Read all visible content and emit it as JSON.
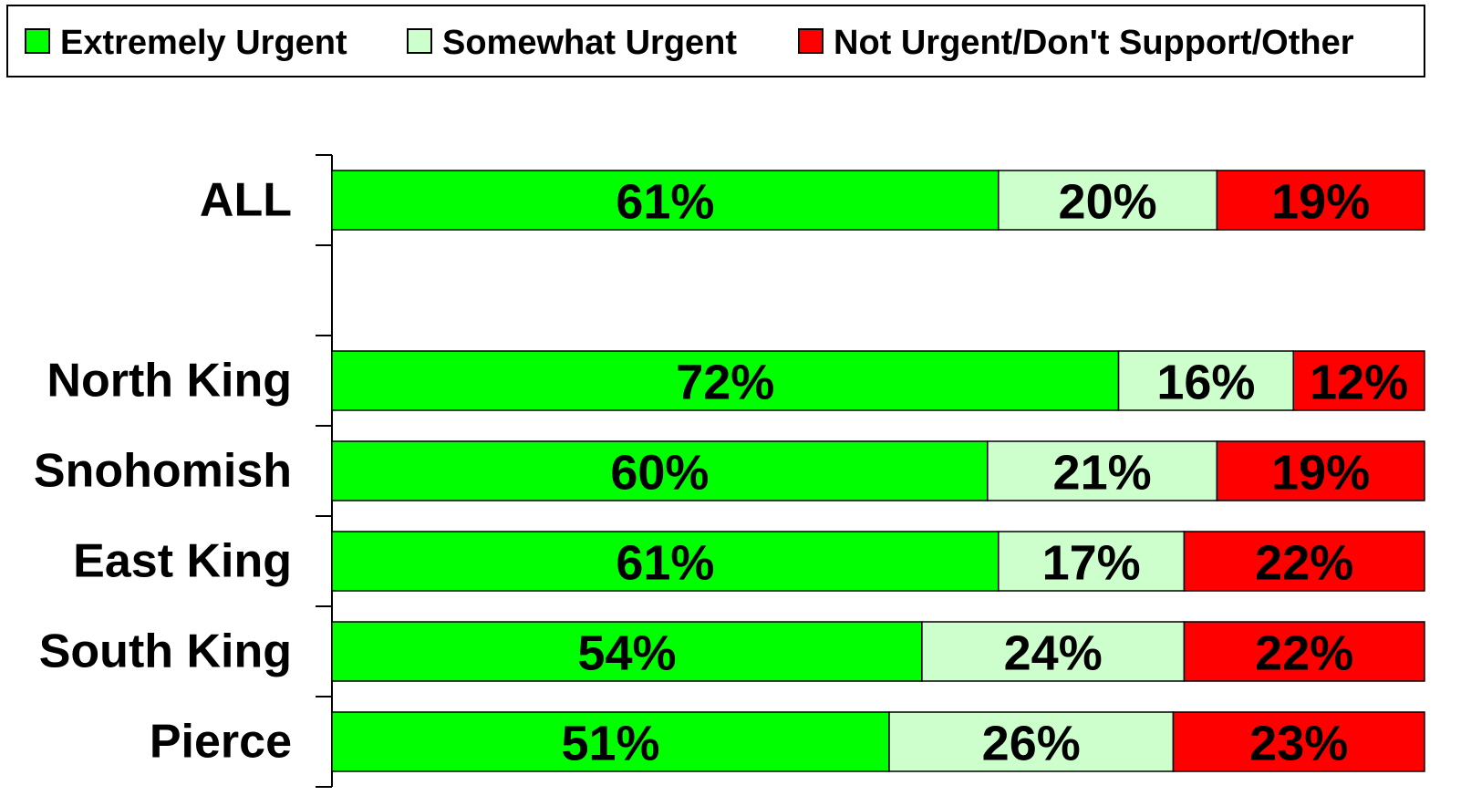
{
  "chart_data": {
    "type": "stacked_bar_horizontal",
    "categories": [
      "ALL",
      null,
      "North King",
      "Snohomish",
      "East King",
      "South King",
      "Pierce"
    ],
    "series": [
      {
        "name": "Extremely Urgent",
        "color": "#00ff00",
        "values": [
          61,
          null,
          72,
          60,
          61,
          54,
          51
        ],
        "value_labels": [
          "61%",
          null,
          "72%",
          "60%",
          "61%",
          "54%",
          "51%"
        ]
      },
      {
        "name": "Somewhat Urgent",
        "color": "#ccffcc",
        "values": [
          20,
          null,
          16,
          21,
          17,
          24,
          26
        ],
        "value_labels": [
          "20%",
          null,
          "16%",
          "21%",
          "17%",
          "24%",
          "26%"
        ]
      },
      {
        "name": "Not Urgent/Don't Support/Other",
        "color": "#ff0000",
        "values": [
          19,
          null,
          12,
          19,
          22,
          22,
          23
        ],
        "value_labels": [
          "19%",
          null,
          "12%",
          "19%",
          "22%",
          "22%",
          "23%"
        ]
      }
    ],
    "xlim": [
      0,
      100
    ],
    "legend": "top"
  }
}
